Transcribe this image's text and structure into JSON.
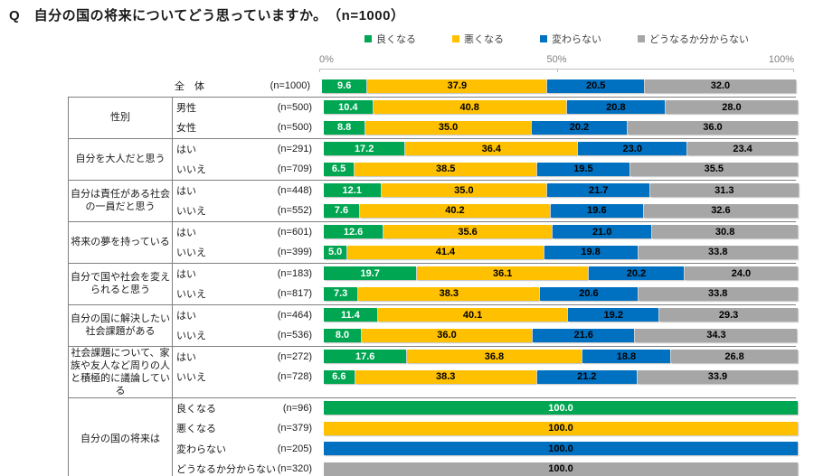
{
  "title": "Q　自分の国の将来についてどう思っていますか。　（n=1000）",
  "legend": {
    "items": [
      {
        "label": "良くなる",
        "color": "#00A651"
      },
      {
        "label": "悪くなる",
        "color": "#FFC000"
      },
      {
        "label": "変わらない",
        "color": "#0070C0"
      },
      {
        "label": "どうなるか分からない",
        "color": "#A6A6A6"
      }
    ]
  },
  "axis": {
    "ticks": [
      {
        "label": "0%",
        "pct": 0
      },
      {
        "label": "50%",
        "pct": 50
      },
      {
        "label": "100%",
        "pct": 100
      }
    ]
  },
  "chart_data": {
    "type": "bar",
    "stacked": true,
    "orientation": "horizontal",
    "unit": "%",
    "xlim": [
      0,
      100
    ],
    "legend_position": "top",
    "series": [
      "良くなる",
      "悪くなる",
      "変わらない",
      "どうなるか分からない"
    ],
    "series_colors": [
      "#00A651",
      "#FFC000",
      "#0070C0",
      "#A6A6A6"
    ],
    "value_text_colors": [
      "#FFFFFF",
      "#000000",
      "#000000",
      "#000000"
    ],
    "groups": [
      {
        "label": "",
        "rows": [
          {
            "label": "全　体",
            "n": "(n=1000)",
            "values": [
              9.6,
              37.9,
              20.5,
              32.0
            ]
          }
        ]
      },
      {
        "label": "性別",
        "rows": [
          {
            "label": "男性",
            "n": "(n=500)",
            "values": [
              10.4,
              40.8,
              20.8,
              28.0
            ]
          },
          {
            "label": "女性",
            "n": "(n=500)",
            "values": [
              8.8,
              35.0,
              20.2,
              36.0
            ]
          }
        ]
      },
      {
        "label": "自分を大人だと思う",
        "rows": [
          {
            "label": "はい",
            "n": "(n=291)",
            "values": [
              17.2,
              36.4,
              23.0,
              23.4
            ]
          },
          {
            "label": "いいえ",
            "n": "(n=709)",
            "values": [
              6.5,
              38.5,
              19.5,
              35.5
            ]
          }
        ]
      },
      {
        "label": "自分は責任がある社会の一員だと思う",
        "rows": [
          {
            "label": "はい",
            "n": "(n=448)",
            "values": [
              12.1,
              35.0,
              21.7,
              31.3
            ]
          },
          {
            "label": "いいえ",
            "n": "(n=552)",
            "values": [
              7.6,
              40.2,
              19.6,
              32.6
            ]
          }
        ]
      },
      {
        "label": "将来の夢を持っている",
        "rows": [
          {
            "label": "はい",
            "n": "(n=601)",
            "values": [
              12.6,
              35.6,
              21.0,
              30.8
            ]
          },
          {
            "label": "いいえ",
            "n": "(n=399)",
            "values": [
              5.0,
              41.4,
              19.8,
              33.8
            ]
          }
        ]
      },
      {
        "label": "自分で国や社会を変えられると思う",
        "rows": [
          {
            "label": "はい",
            "n": "(n=183)",
            "values": [
              19.7,
              36.1,
              20.2,
              24.0
            ]
          },
          {
            "label": "いいえ",
            "n": "(n=817)",
            "values": [
              7.3,
              38.3,
              20.6,
              33.8
            ]
          }
        ]
      },
      {
        "label": "自分の国に解決したい社会課題がある",
        "rows": [
          {
            "label": "はい",
            "n": "(n=464)",
            "values": [
              11.4,
              40.1,
              19.2,
              29.3
            ]
          },
          {
            "label": "いいえ",
            "n": "(n=536)",
            "values": [
              8.0,
              36.0,
              21.6,
              34.3
            ]
          }
        ]
      },
      {
        "label": "社会課題について、家族や友人など周りの人と積極的に議論している",
        "rows": [
          {
            "label": "はい",
            "n": "(n=272)",
            "values": [
              17.6,
              36.8,
              18.8,
              26.8
            ]
          },
          {
            "label": "いいえ",
            "n": "(n=728)",
            "values": [
              6.6,
              38.3,
              21.2,
              33.9
            ]
          }
        ]
      },
      {
        "label": "自分の国の将来は",
        "rows": [
          {
            "label": "良くなる",
            "n": "(n=96)",
            "values": [
              100.0,
              0,
              0,
              0
            ]
          },
          {
            "label": "悪くなる",
            "n": "(n=379)",
            "values": [
              0,
              100.0,
              0,
              0
            ]
          },
          {
            "label": "変わらない",
            "n": "(n=205)",
            "values": [
              0,
              0,
              100.0,
              0
            ]
          },
          {
            "label": "どうなるか分からない",
            "n": "(n=320)",
            "values": [
              0,
              0,
              0,
              100.0
            ]
          }
        ]
      }
    ]
  }
}
